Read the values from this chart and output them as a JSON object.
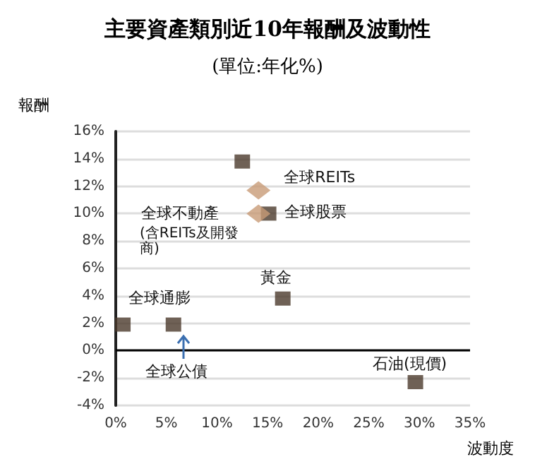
{
  "chart_data": {
    "type": "scatter",
    "title": "主要資產類別近10年報酬及波動性",
    "subtitle": "(單位:年化%)",
    "xlabel": "波動度",
    "ylabel": "報酬",
    "series": [
      {
        "color": "#4b3a2c",
        "marker": "square",
        "x": [
          12.5,
          15.1,
          16.5,
          29.6,
          0.7,
          5.7
        ],
        "values": [
          13.8,
          10.0,
          3.8,
          -2.3,
          1.9,
          1.9
        ]
      },
      {
        "color": "#c89b77",
        "marker": "diamond",
        "x": [
          14.1,
          14.1
        ],
        "values": [
          11.7,
          10.0
        ]
      }
    ],
    "xlim": [
      0,
      35
    ],
    "xticks": [
      {
        "value": 0,
        "label": "0%"
      },
      {
        "value": 5,
        "label": "5%"
      },
      {
        "value": 10,
        "label": "10%"
      },
      {
        "value": 15,
        "label": "15%"
      },
      {
        "value": 20,
        "label": "20%"
      },
      {
        "value": 25,
        "label": "25%"
      },
      {
        "value": 30,
        "label": "30%"
      },
      {
        "value": 35,
        "label": "35%"
      }
    ],
    "ylim": [
      -4,
      16
    ],
    "yticks": [
      {
        "value": -4,
        "label": "-4%"
      },
      {
        "value": -2,
        "label": "-2%"
      },
      {
        "value": 0,
        "label": "0%"
      },
      {
        "value": 2,
        "label": "2%"
      },
      {
        "value": 4,
        "label": "4%"
      },
      {
        "value": 6,
        "label": "6%"
      },
      {
        "value": 8,
        "label": "8%"
      },
      {
        "value": 10,
        "label": "10%"
      },
      {
        "value": 12,
        "label": "12%"
      },
      {
        "value": 14,
        "label": "14%"
      },
      {
        "value": 16,
        "label": "16%"
      }
    ],
    "grid": "y",
    "ref_lines": [
      {
        "axis": "y",
        "value": 0,
        "color": "#000000"
      }
    ],
    "annotations": [
      {
        "text": "全球REITs",
        "x": 14.1,
        "y": 11.7
      },
      {
        "text": "全球股票",
        "x": 15.1,
        "y": 10.0
      },
      {
        "text": "全球不動產",
        "x": 14.1,
        "y": 10.0
      },
      "(含REITs及開發商)",
      {
        "text": "黃金",
        "x": 16.5,
        "y": 3.8
      },
      {
        "text": "石油(現價)",
        "x": 29.6,
        "y": -2.3
      },
      {
        "text": "全球通膨",
        "x": 0.7,
        "y": 1.9
      },
      {
        "text": "全球公債",
        "x": 5.7,
        "y": 1.9
      }
    ]
  }
}
